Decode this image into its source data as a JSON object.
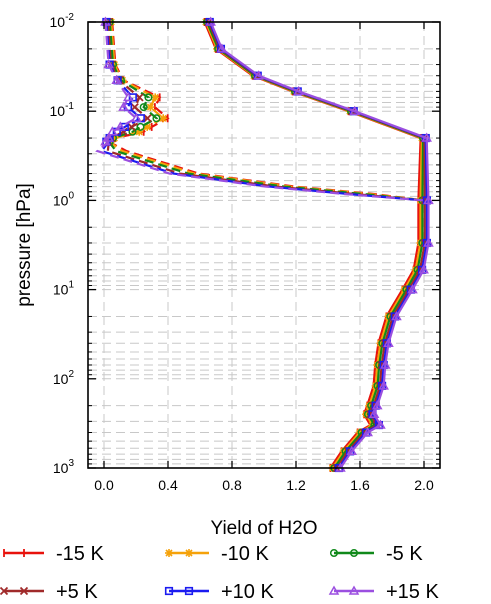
{
  "chart_data": {
    "type": "line",
    "xlabel": "Yield of H2O",
    "ylabel": "pressure [hPa]",
    "xlim": [
      -0.1,
      2.1
    ],
    "ylim": [
      0.01,
      1000
    ],
    "y_scale": "log",
    "y_inverted": true,
    "grid": true,
    "legend_position": "bottom",
    "x_ticks": [
      {
        "value": 0.0,
        "label": "0.0"
      },
      {
        "value": 0.4,
        "label": "0.4"
      },
      {
        "value": 0.8,
        "label": "0.8"
      },
      {
        "value": 1.2,
        "label": "1.2"
      },
      {
        "value": 1.6,
        "label": "1.6"
      },
      {
        "value": 2.0,
        "label": "2.0"
      }
    ],
    "y_ticks": [
      {
        "value": 0.01,
        "base": "10",
        "exp": "-2"
      },
      {
        "value": 0.1,
        "base": "10",
        "exp": "-1"
      },
      {
        "value": 1,
        "base": "10",
        "exp": "0"
      },
      {
        "value": 10,
        "base": "10",
        "exp": "1"
      },
      {
        "value": 100,
        "base": "10",
        "exp": "2"
      },
      {
        "value": 1000,
        "base": "10",
        "exp": "3"
      }
    ],
    "series": [
      {
        "name": "-15 K",
        "color": "#e8120c",
        "marker": "bar",
        "shift": -0.035,
        "upper_x_offset": 0.07
      },
      {
        "name": "-10 K",
        "color": "#f5a20a",
        "marker": "asterisk",
        "shift": -0.022,
        "upper_x_offset": 0.05
      },
      {
        "name": "-5 K",
        "color": "#10891a",
        "marker": "circle",
        "shift": -0.01,
        "upper_x_offset": 0.02
      },
      {
        "name": "+5 K",
        "color": "#a02a2a",
        "marker": "cross",
        "shift": 0.005,
        "upper_x_offset": -0.02
      },
      {
        "name": "+10 K",
        "color": "#1b1bf0",
        "marker": "square",
        "shift": 0.018,
        "upper_x_offset": -0.05
      },
      {
        "name": "+15 K",
        "color": "#9b4fe0",
        "marker": "triangle",
        "shift": 0.028,
        "upper_x_offset": -0.07
      }
    ],
    "solid_profile": [
      [
        0.65,
        0.01
      ],
      [
        0.72,
        0.02
      ],
      [
        0.95,
        0.04
      ],
      [
        1.2,
        0.06
      ],
      [
        1.55,
        0.1
      ],
      [
        2.0,
        0.2
      ],
      [
        2.0,
        1.0
      ],
      [
        2.0,
        3.0
      ],
      [
        1.97,
        6.0
      ],
      [
        1.9,
        10.0
      ],
      [
        1.8,
        20.0
      ],
      [
        1.75,
        40.0
      ],
      [
        1.73,
        70.0
      ],
      [
        1.72,
        120.0
      ],
      [
        1.68,
        200.0
      ],
      [
        1.66,
        250.0
      ],
      [
        1.7,
        330.0
      ],
      [
        1.62,
        400.0
      ],
      [
        1.52,
        650.0
      ],
      [
        1.45,
        1000.0
      ]
    ],
    "dashed_upper_profile": [
      [
        0.03,
        0.01
      ],
      [
        0.05,
        0.03
      ],
      [
        0.1,
        0.045
      ],
      [
        0.25,
        0.07
      ],
      [
        0.22,
        0.09
      ],
      [
        0.3,
        0.12
      ],
      [
        0.2,
        0.15
      ],
      [
        0.15,
        0.17
      ],
      [
        0.05,
        0.2
      ],
      [
        0.03,
        0.22
      ]
    ],
    "dashed_lower_profile": [
      [
        0.03,
        0.22
      ],
      [
        0.05,
        0.28
      ],
      [
        0.5,
        0.5
      ],
      [
        1.1,
        0.7
      ],
      [
        1.6,
        0.85
      ],
      [
        2.0,
        1.0
      ]
    ]
  }
}
